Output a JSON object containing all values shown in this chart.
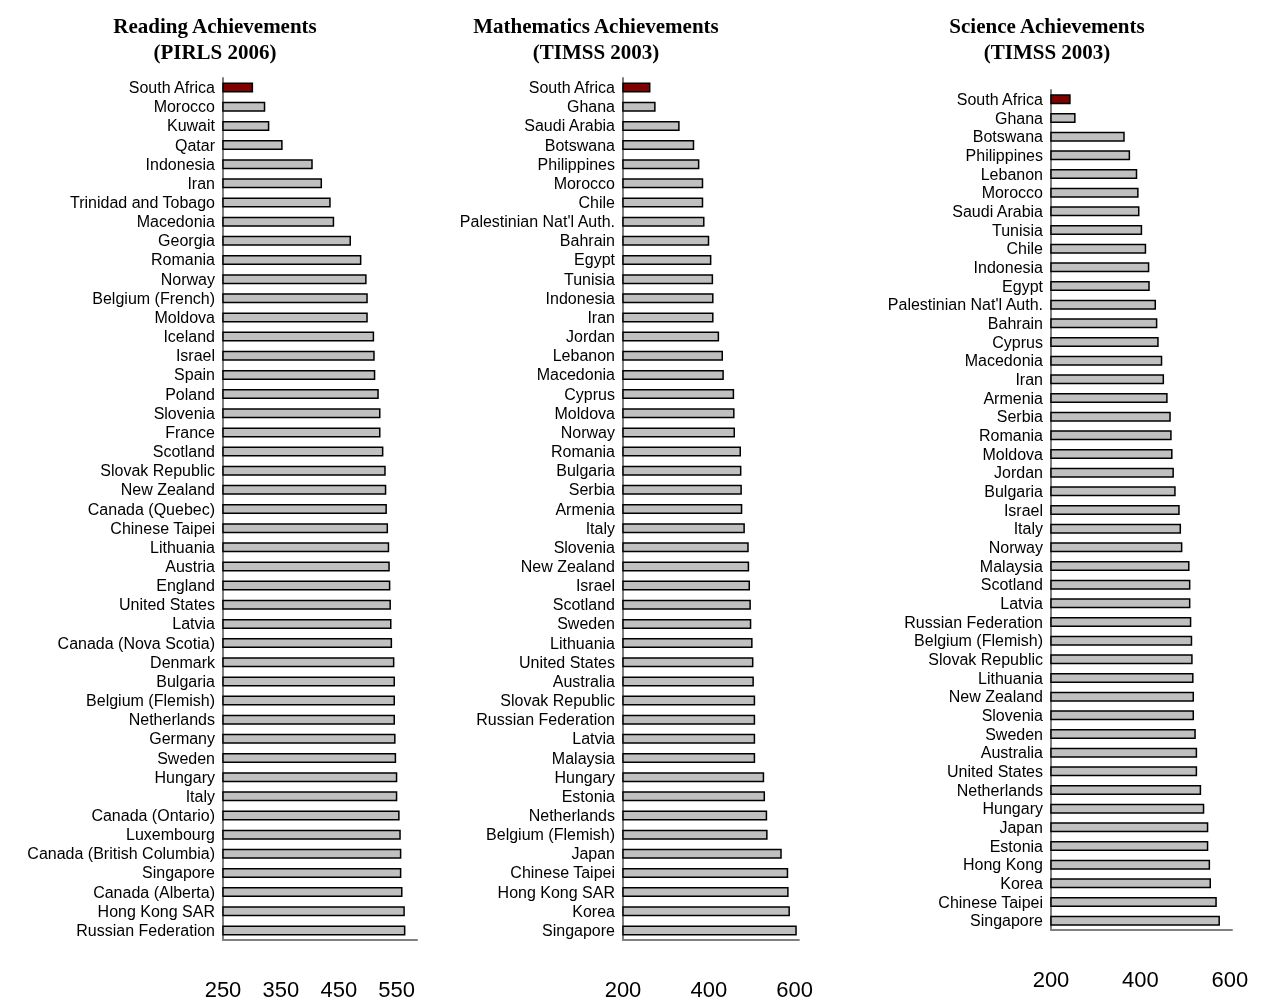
{
  "chart_data": [
    {
      "type": "bar",
      "orientation": "horizontal",
      "title": "Reading Achievements\n(PIRLS 2006)",
      "grid": false,
      "categories": [
        "South Africa",
        "Morocco",
        "Kuwait",
        "Qatar",
        "Indonesia",
        "Iran",
        "Trinidad and Tobago",
        "Macedonia",
        "Georgia",
        "Romania",
        "Norway",
        "Belgium (French)",
        "Moldova",
        "Iceland",
        "Israel",
        "Spain",
        "Poland",
        "Slovenia",
        "France",
        "Scotland",
        "Slovak Republic",
        "New Zealand",
        "Canada (Quebec)",
        "Chinese Taipei",
        "Lithuania",
        "Austria",
        "England",
        "United States",
        "Latvia",
        "Canada (Nova Scotia)",
        "Denmark",
        "Bulgaria",
        "Belgium (Flemish)",
        "Netherlands",
        "Germany",
        "Sweden",
        "Hungary",
        "Italy",
        "Canada (Ontario)",
        "Luxembourg",
        "Canada (British Columbia)",
        "Singapore",
        "Canada (Alberta)",
        "Hong Kong SAR",
        "Russian Federation"
      ],
      "values": [
        302,
        323,
        330,
        353,
        405,
        421,
        436,
        442,
        471,
        489,
        498,
        500,
        500,
        511,
        512,
        513,
        519,
        522,
        522,
        527,
        531,
        532,
        533,
        535,
        537,
        538,
        539,
        540,
        541,
        542,
        546,
        547,
        547,
        547,
        548,
        549,
        551,
        551,
        555,
        557,
        558,
        558,
        560,
        564,
        565
      ],
      "colors": [
        "#800000",
        "#c0c0c0",
        "#c0c0c0",
        "#c0c0c0",
        "#c0c0c0",
        "#c0c0c0",
        "#c0c0c0",
        "#c0c0c0",
        "#c0c0c0",
        "#c0c0c0",
        "#c0c0c0",
        "#c0c0c0",
        "#c0c0c0",
        "#c0c0c0",
        "#c0c0c0",
        "#c0c0c0",
        "#c0c0c0",
        "#c0c0c0",
        "#c0c0c0",
        "#c0c0c0",
        "#c0c0c0",
        "#c0c0c0",
        "#c0c0c0",
        "#c0c0c0",
        "#c0c0c0",
        "#c0c0c0",
        "#c0c0c0",
        "#c0c0c0",
        "#c0c0c0",
        "#c0c0c0",
        "#c0c0c0",
        "#c0c0c0",
        "#c0c0c0",
        "#c0c0c0",
        "#c0c0c0",
        "#c0c0c0",
        "#c0c0c0",
        "#c0c0c0",
        "#c0c0c0",
        "#c0c0c0",
        "#c0c0c0",
        "#c0c0c0",
        "#c0c0c0",
        "#c0c0c0",
        "#c0c0c0"
      ],
      "xlim": [
        250,
        585
      ],
      "xticks": [
        250,
        350,
        450,
        550
      ]
    },
    {
      "type": "bar",
      "orientation": "horizontal",
      "title": "Mathematics Achievements\n(TIMSS 2003)",
      "grid": false,
      "categories": [
        "South Africa",
        "Ghana",
        "Saudi Arabia",
        "Botswana",
        "Philippines",
        "Morocco",
        "Chile",
        "Palestinian Nat'l Auth.",
        "Bahrain",
        "Egypt",
        "Tunisia",
        "Indonesia",
        "Iran",
        "Jordan",
        "Lebanon",
        "Macedonia",
        "Cyprus",
        "Moldova",
        "Norway",
        "Romania",
        "Bulgaria",
        "Serbia",
        "Armenia",
        "Italy",
        "Slovenia",
        "New Zealand",
        "Israel",
        "Scotland",
        "Sweden",
        "Lithuania",
        "United States",
        "Australia",
        "Slovak Republic",
        "Russian Federation",
        "Latvia",
        "Malaysia",
        "Hungary",
        "Estonia",
        "Netherlands",
        "Belgium (Flemish)",
        "Japan",
        "Chinese Taipei",
        "Hong Kong SAR",
        "Korea",
        "Singapore"
      ],
      "values": [
        264,
        276,
        332,
        366,
        378,
        387,
        387,
        390,
        401,
        406,
        410,
        411,
        411,
        424,
        433,
        435,
        459,
        460,
        461,
        475,
        476,
        477,
        478,
        484,
        493,
        494,
        496,
        498,
        499,
        502,
        504,
        505,
        508,
        508,
        508,
        508,
        529,
        531,
        536,
        537,
        570,
        585,
        586,
        589,
        605
      ],
      "colors": [
        "#800000",
        "#c0c0c0",
        "#c0c0c0",
        "#c0c0c0",
        "#c0c0c0",
        "#c0c0c0",
        "#c0c0c0",
        "#c0c0c0",
        "#c0c0c0",
        "#c0c0c0",
        "#c0c0c0",
        "#c0c0c0",
        "#c0c0c0",
        "#c0c0c0",
        "#c0c0c0",
        "#c0c0c0",
        "#c0c0c0",
        "#c0c0c0",
        "#c0c0c0",
        "#c0c0c0",
        "#c0c0c0",
        "#c0c0c0",
        "#c0c0c0",
        "#c0c0c0",
        "#c0c0c0",
        "#c0c0c0",
        "#c0c0c0",
        "#c0c0c0",
        "#c0c0c0",
        "#c0c0c0",
        "#c0c0c0",
        "#c0c0c0",
        "#c0c0c0",
        "#c0c0c0",
        "#c0c0c0",
        "#c0c0c0",
        "#c0c0c0",
        "#c0c0c0",
        "#c0c0c0",
        "#c0c0c0",
        "#c0c0c0",
        "#c0c0c0",
        "#c0c0c0",
        "#c0c0c0",
        "#c0c0c0"
      ],
      "xlim": [
        200,
        610
      ],
      "xticks": [
        200,
        400,
        600
      ]
    },
    {
      "type": "bar",
      "orientation": "horizontal",
      "title": "Science Achievements\n(TIMSS 2003)",
      "grid": false,
      "categories": [
        "South Africa",
        "Ghana",
        "Botswana",
        "Philippines",
        "Lebanon",
        "Morocco",
        "Saudi Arabia",
        "Tunisia",
        "Chile",
        "Indonesia",
        "Egypt",
        "Palestinian Nat'l Auth.",
        "Bahrain",
        "Cyprus",
        "Macedonia",
        "Iran",
        "Armenia",
        "Serbia",
        "Romania",
        "Moldova",
        "Jordan",
        "Bulgaria",
        "Israel",
        "Italy",
        "Norway",
        "Malaysia",
        "Scotland",
        "Latvia",
        "Russian Federation",
        "Belgium (Flemish)",
        "Slovak Republic",
        "Lithuania",
        "New Zealand",
        "Slovenia",
        "Sweden",
        "Australia",
        "United States",
        "Netherlands",
        "Hungary",
        "Japan",
        "Estonia",
        "Hong Kong",
        "Korea",
        "Chinese Taipei",
        "Singapore"
      ],
      "values": [
        244,
        255,
        365,
        377,
        393,
        396,
        398,
        404,
        413,
        420,
        421,
        435,
        438,
        441,
        449,
        453,
        461,
        468,
        470,
        472,
        475,
        479,
        488,
        491,
        494,
        510,
        512,
        512,
        514,
        516,
        517,
        519,
        520,
        520,
        524,
        527,
        527,
        536,
        543,
        552,
        552,
        556,
        558,
        571,
        578
      ],
      "colors": [
        "#800000",
        "#c0c0c0",
        "#c0c0c0",
        "#c0c0c0",
        "#c0c0c0",
        "#c0c0c0",
        "#c0c0c0",
        "#c0c0c0",
        "#c0c0c0",
        "#c0c0c0",
        "#c0c0c0",
        "#c0c0c0",
        "#c0c0c0",
        "#c0c0c0",
        "#c0c0c0",
        "#c0c0c0",
        "#c0c0c0",
        "#c0c0c0",
        "#c0c0c0",
        "#c0c0c0",
        "#c0c0c0",
        "#c0c0c0",
        "#c0c0c0",
        "#c0c0c0",
        "#c0c0c0",
        "#c0c0c0",
        "#c0c0c0",
        "#c0c0c0",
        "#c0c0c0",
        "#c0c0c0",
        "#c0c0c0",
        "#c0c0c0",
        "#c0c0c0",
        "#c0c0c0",
        "#c0c0c0",
        "#c0c0c0",
        "#c0c0c0",
        "#c0c0c0",
        "#c0c0c0",
        "#c0c0c0",
        "#c0c0c0",
        "#c0c0c0",
        "#c0c0c0",
        "#c0c0c0",
        "#c0c0c0"
      ],
      "xlim": [
        200,
        605
      ],
      "xticks": [
        200,
        400,
        600
      ]
    }
  ]
}
